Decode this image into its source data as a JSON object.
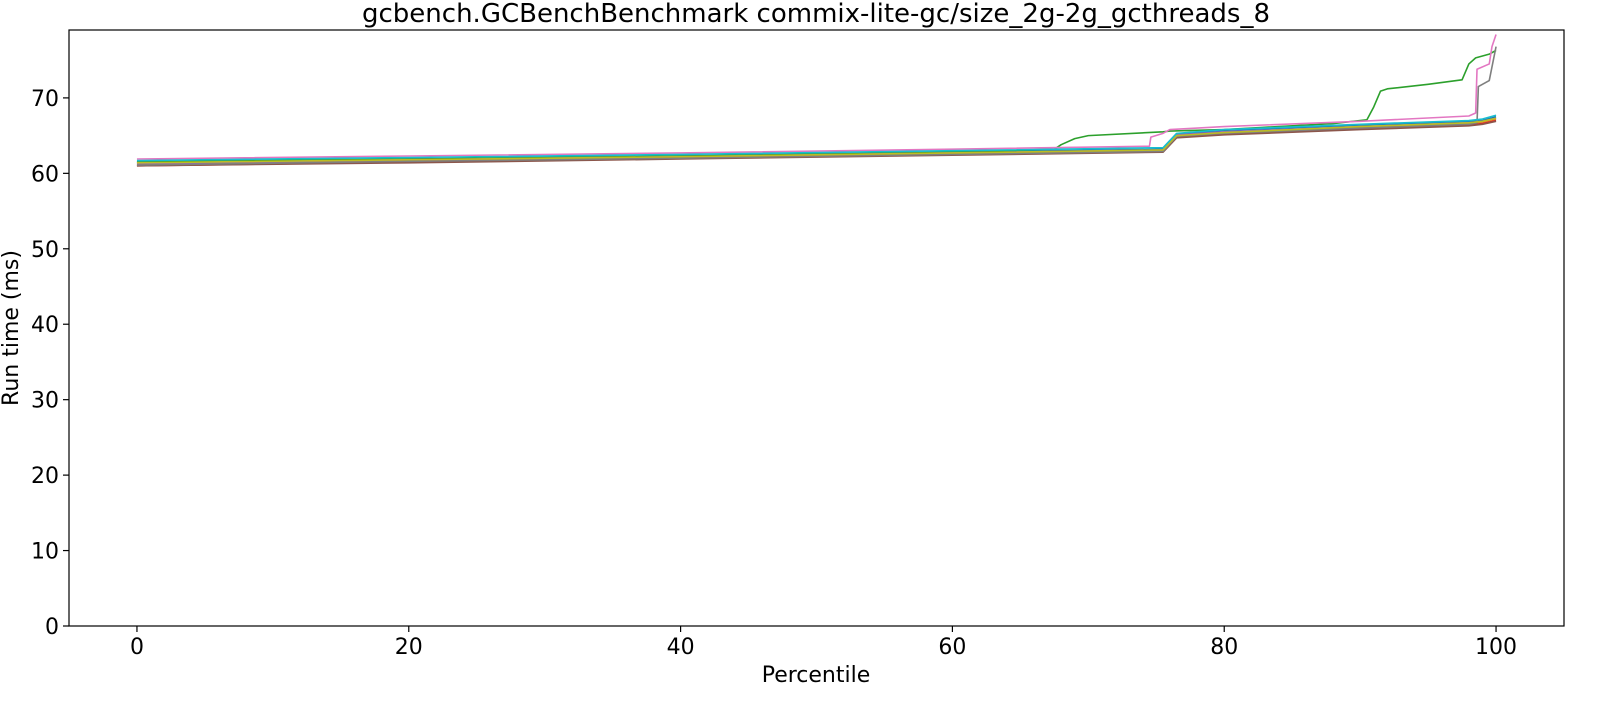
{
  "chart_data": {
    "type": "line",
    "title": "gcbench.GCBenchBenchmark commix-lite-gc/size_2g-2g_gcthreads_8",
    "xlabel": "Percentile",
    "ylabel": "Run time (ms)",
    "xlim": [
      -5,
      105
    ],
    "ylim": [
      0,
      79
    ],
    "xticks": [
      "0",
      "20",
      "40",
      "60",
      "80",
      "100"
    ],
    "yticks": [
      "0",
      "10",
      "20",
      "30",
      "40",
      "50",
      "60",
      "70"
    ],
    "grid": false,
    "legend": "none",
    "series": [
      {
        "color": "#1f77b4",
        "x": [
          0,
          20,
          40,
          60,
          75.5,
          76.5,
          80,
          90,
          98,
          99,
          100
        ],
        "y": [
          61.5,
          61.9,
          62.3,
          62.8,
          63.2,
          65.2,
          65.7,
          66.4,
          66.9,
          67.0,
          67.5
        ]
      },
      {
        "color": "#ff7f0e",
        "x": [
          0,
          20,
          40,
          60,
          75.5,
          76.5,
          80,
          90,
          98,
          99,
          100
        ],
        "y": [
          61.2,
          61.7,
          62.1,
          62.6,
          63.0,
          65.0,
          65.4,
          66.1,
          66.6,
          66.8,
          67.2
        ]
      },
      {
        "color": "#2ca02c",
        "x": [
          0,
          20,
          40,
          60,
          67.5,
          68,
          69,
          70,
          75.5,
          76,
          80,
          88,
          90.5,
          91,
          91.5,
          92,
          95,
          97.5,
          98,
          98.5,
          99.5,
          100
        ],
        "y": [
          61.5,
          61.9,
          62.3,
          62.8,
          63.2,
          63.8,
          64.6,
          65.0,
          65.5,
          65.6,
          65.8,
          66.6,
          67.1,
          68.8,
          70.9,
          71.2,
          71.8,
          72.4,
          74.5,
          75.3,
          75.8,
          76.3
        ]
      },
      {
        "color": "#d62728",
        "x": [
          0,
          20,
          40,
          60,
          75.5,
          76.5,
          80,
          90,
          98,
          99,
          100
        ],
        "y": [
          61.0,
          61.5,
          62.0,
          62.5,
          62.9,
          64.8,
          65.2,
          65.9,
          66.4,
          66.6,
          67.0
        ]
      },
      {
        "color": "#9467bd",
        "x": [
          0,
          20,
          40,
          60,
          75.5,
          76.5,
          80,
          90,
          98,
          99,
          100
        ],
        "y": [
          61.3,
          61.8,
          62.2,
          62.7,
          63.1,
          65.1,
          65.5,
          66.2,
          66.7,
          66.9,
          67.3
        ]
      },
      {
        "color": "#8c564b",
        "x": [
          0,
          20,
          40,
          60,
          75.5,
          76.5,
          80,
          90,
          98,
          99,
          100
        ],
        "y": [
          61.0,
          61.4,
          61.9,
          62.4,
          62.8,
          64.7,
          65.1,
          65.8,
          66.3,
          66.5,
          66.9
        ]
      },
      {
        "color": "#e377c2",
        "x": [
          0,
          20,
          40,
          60,
          74.5,
          74.6,
          75.5,
          76,
          80,
          90,
          98,
          98.5,
          98.6,
          99.5,
          99.7,
          100
        ],
        "y": [
          61.9,
          62.3,
          62.7,
          63.2,
          63.6,
          64.8,
          65.3,
          65.8,
          66.2,
          66.9,
          67.6,
          68.0,
          73.8,
          74.5,
          76.8,
          78.4
        ]
      },
      {
        "color": "#7f7f7f",
        "x": [
          0,
          20,
          40,
          60,
          75.5,
          76.5,
          80,
          90,
          98,
          98.6,
          98.7,
          99.5,
          100
        ],
        "y": [
          61.1,
          61.6,
          62.0,
          62.5,
          62.9,
          64.9,
          65.3,
          66.0,
          66.5,
          66.7,
          71.5,
          72.3,
          76.8
        ]
      },
      {
        "color": "#bcbd22",
        "x": [
          0,
          20,
          40,
          60,
          75.5,
          76.5,
          80,
          90,
          98,
          99,
          100
        ],
        "y": [
          61.4,
          61.8,
          62.2,
          62.7,
          63.1,
          65.0,
          65.4,
          66.2,
          66.7,
          66.9,
          67.3
        ]
      },
      {
        "color": "#17becf",
        "x": [
          0,
          20,
          40,
          60,
          75.5,
          76.5,
          80,
          90,
          98,
          99,
          100
        ],
        "y": [
          61.7,
          62.1,
          62.5,
          63.0,
          63.4,
          65.3,
          65.8,
          66.5,
          67.0,
          67.2,
          67.7
        ]
      }
    ]
  }
}
